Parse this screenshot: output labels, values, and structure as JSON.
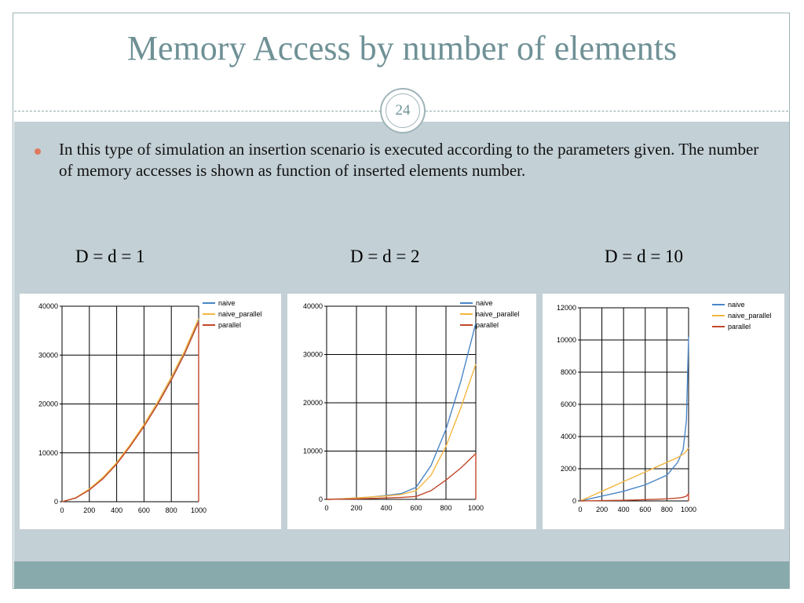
{
  "slide": {
    "title": "Memory Access by number of elements",
    "number": "24",
    "bullet": "In this type of simulation an insertion scenario is executed according to the parameters given. The number of memory accesses is shown as function of inserted elements number."
  },
  "captions": [
    "D = d = 1",
    "D = d = 2",
    "D = d = 10"
  ],
  "colors": {
    "naive": "#4a86c8",
    "naive_parallel": "#f4b640",
    "parallel": "#c0482a"
  },
  "chart_data": [
    {
      "type": "line",
      "title": "D = d = 1",
      "x": [
        0,
        100,
        200,
        300,
        400,
        500,
        600,
        700,
        800,
        900,
        1000
      ],
      "xlim": [
        0,
        1000
      ],
      "ylim": [
        0,
        40000
      ],
      "xticks": [
        "0",
        "200",
        "400",
        "600",
        "800",
        "1000"
      ],
      "yticks": [
        "0",
        "10000",
        "20000",
        "30000",
        "40000"
      ],
      "legend_position": "top-right",
      "series": [
        {
          "name": "naive",
          "values": [
            0,
            800,
            2500,
            4800,
            7800,
            11500,
            15500,
            20000,
            25000,
            30500,
            37000
          ]
        },
        {
          "name": "naive_parallel",
          "values": [
            0,
            800,
            2600,
            5000,
            8000,
            11700,
            15800,
            20400,
            25500,
            31000,
            37500
          ]
        },
        {
          "name": "parallel",
          "values": [
            0,
            750,
            2400,
            4700,
            7700,
            11400,
            15400,
            19900,
            24900,
            30400,
            36800
          ]
        }
      ]
    },
    {
      "type": "line",
      "title": "D = d = 2",
      "x": [
        0,
        100,
        200,
        300,
        400,
        500,
        600,
        700,
        800,
        900,
        1000
      ],
      "xlim": [
        0,
        1000
      ],
      "ylim": [
        0,
        40000
      ],
      "xticks": [
        "0",
        "200",
        "400",
        "600",
        "800",
        "1000"
      ],
      "yticks": [
        "0",
        "10000",
        "20000",
        "30000",
        "40000"
      ],
      "legend_position": "top-right",
      "series": [
        {
          "name": "naive",
          "values": [
            0,
            100,
            300,
            500,
            800,
            1200,
            2500,
            7000,
            14500,
            24500,
            36500
          ]
        },
        {
          "name": "naive_parallel",
          "values": [
            0,
            100,
            300,
            500,
            700,
            1000,
            1800,
            5000,
            11000,
            19000,
            28000
          ]
        },
        {
          "name": "parallel",
          "values": [
            0,
            50,
            100,
            200,
            300,
            400,
            600,
            1800,
            4000,
            6500,
            9500
          ]
        }
      ]
    },
    {
      "type": "line",
      "title": "D = d = 10",
      "x": [
        0,
        100,
        200,
        300,
        400,
        500,
        600,
        700,
        800,
        900,
        950,
        980,
        1000
      ],
      "xlim": [
        0,
        1000
      ],
      "ylim": [
        0,
        12000
      ],
      "xticks": [
        "0",
        "200",
        "400",
        "600",
        "800",
        "1000"
      ],
      "yticks": [
        "0",
        "2000",
        "4000",
        "6000",
        "8000",
        "10000",
        "12000"
      ],
      "legend_position": "top-right",
      "series": [
        {
          "name": "naive",
          "values": [
            0,
            150,
            300,
            450,
            600,
            800,
            1000,
            1300,
            1600,
            2400,
            3200,
            5000,
            10200
          ]
        },
        {
          "name": "naive_parallel",
          "values": [
            0,
            300,
            600,
            900,
            1200,
            1500,
            1800,
            2100,
            2400,
            2700,
            2900,
            3100,
            3300
          ]
        },
        {
          "name": "parallel",
          "values": [
            0,
            10,
            20,
            30,
            40,
            60,
            80,
            100,
            130,
            180,
            230,
            300,
            450
          ]
        }
      ]
    }
  ]
}
